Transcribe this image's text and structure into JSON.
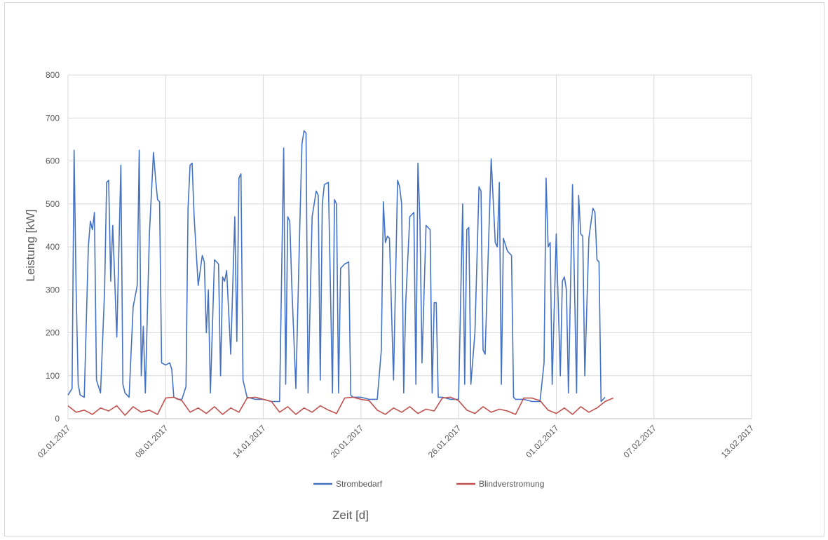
{
  "chart_data": {
    "type": "line",
    "title": "",
    "xlabel": "Zeit [d]",
    "ylabel": "Leistung [kW]",
    "ylim": [
      0,
      800
    ],
    "yticks": [
      0,
      100,
      200,
      300,
      400,
      500,
      600,
      700,
      800
    ],
    "xlim": [
      "02.01.2017",
      "13.02.2017"
    ],
    "xticks": [
      "02.01.2017",
      "08.01.2017",
      "14.01.2017",
      "20.01.2017",
      "26.01.2017",
      "01.02.2017",
      "07.02.2017",
      "13.02.2017"
    ],
    "grid": true,
    "legend": "bottom",
    "series": [
      {
        "name": "Strombedarf",
        "color": "#4472c4",
        "points": [
          [
            "02.01.2017 00:00",
            55
          ],
          [
            "02.01.2017 06:00",
            70
          ],
          [
            "02.01.2017 09:00",
            625
          ],
          [
            "02.01.2017 12:00",
            300
          ],
          [
            "02.01.2017 15:00",
            80
          ],
          [
            "02.01.2017 18:00",
            55
          ],
          [
            "03.01.2017 00:00",
            50
          ],
          [
            "03.01.2017 06:00",
            400
          ],
          [
            "03.01.2017 09:00",
            460
          ],
          [
            "03.01.2017 12:00",
            440
          ],
          [
            "03.01.2017 15:00",
            480
          ],
          [
            "03.01.2017 18:00",
            90
          ],
          [
            "04.01.2017 00:00",
            60
          ],
          [
            "04.01.2017 06:00",
            300
          ],
          [
            "04.01.2017 09:00",
            550
          ],
          [
            "04.01.2017 12:00",
            555
          ],
          [
            "04.01.2017 15:00",
            320
          ],
          [
            "04.01.2017 18:00",
            450
          ],
          [
            "05.01.2017 00:00",
            190
          ],
          [
            "05.01.2017 06:00",
            590
          ],
          [
            "05.01.2017 09:00",
            80
          ],
          [
            "05.01.2017 12:00",
            60
          ],
          [
            "05.01.2017 15:00",
            55
          ],
          [
            "05.01.2017 18:00",
            50
          ],
          [
            "06.01.2017 00:00",
            260
          ],
          [
            "06.01.2017 06:00",
            310
          ],
          [
            "06.01.2017 09:00",
            625
          ],
          [
            "06.01.2017 12:00",
            100
          ],
          [
            "06.01.2017 15:00",
            215
          ],
          [
            "06.01.2017 18:00",
            60
          ],
          [
            "07.01.2017 00:00",
            430
          ],
          [
            "07.01.2017 06:00",
            620
          ],
          [
            "07.01.2017 09:00",
            560
          ],
          [
            "07.01.2017 12:00",
            510
          ],
          [
            "07.01.2017 15:00",
            505
          ],
          [
            "07.01.2017 18:00",
            130
          ],
          [
            "08.01.2017 00:00",
            125
          ],
          [
            "08.01.2017 06:00",
            130
          ],
          [
            "08.01.2017 09:00",
            115
          ],
          [
            "08.01.2017 12:00",
            50
          ],
          [
            "08.01.2017 18:00",
            45
          ],
          [
            "09.01.2017 00:00",
            45
          ],
          [
            "09.01.2017 06:00",
            75
          ],
          [
            "09.01.2017 09:00",
            490
          ],
          [
            "09.01.2017 12:00",
            590
          ],
          [
            "09.01.2017 15:00",
            595
          ],
          [
            "09.01.2017 18:00",
            470
          ],
          [
            "10.01.2017 00:00",
            310
          ],
          [
            "10.01.2017 06:00",
            380
          ],
          [
            "10.01.2017 09:00",
            365
          ],
          [
            "10.01.2017 12:00",
            200
          ],
          [
            "10.01.2017 15:00",
            300
          ],
          [
            "10.01.2017 18:00",
            60
          ],
          [
            "11.01.2017 00:00",
            370
          ],
          [
            "11.01.2017 06:00",
            360
          ],
          [
            "11.01.2017 09:00",
            100
          ],
          [
            "11.01.2017 12:00",
            330
          ],
          [
            "11.01.2017 15:00",
            320
          ],
          [
            "11.01.2017 18:00",
            345
          ],
          [
            "12.01.2017 00:00",
            150
          ],
          [
            "12.01.2017 06:00",
            470
          ],
          [
            "12.01.2017 09:00",
            180
          ],
          [
            "12.01.2017 12:00",
            560
          ],
          [
            "12.01.2017 15:00",
            570
          ],
          [
            "12.01.2017 18:00",
            90
          ],
          [
            "13.01.2017 00:00",
            50
          ],
          [
            "13.01.2017 12:00",
            45
          ],
          [
            "14.01.2017 00:00",
            45
          ],
          [
            "14.01.2017 12:00",
            40
          ],
          [
            "15.01.2017 00:00",
            40
          ],
          [
            "15.01.2017 06:00",
            630
          ],
          [
            "15.01.2017 09:00",
            80
          ],
          [
            "15.01.2017 12:00",
            470
          ],
          [
            "15.01.2017 15:00",
            460
          ],
          [
            "15.01.2017 18:00",
            310
          ],
          [
            "16.01.2017 00:00",
            70
          ],
          [
            "16.01.2017 06:00",
            460
          ],
          [
            "16.01.2017 09:00",
            640
          ],
          [
            "16.01.2017 12:00",
            670
          ],
          [
            "16.01.2017 15:00",
            665
          ],
          [
            "16.01.2017 18:00",
            60
          ],
          [
            "17.01.2017 00:00",
            470
          ],
          [
            "17.01.2017 06:00",
            530
          ],
          [
            "17.01.2017 09:00",
            520
          ],
          [
            "17.01.2017 12:00",
            90
          ],
          [
            "17.01.2017 15:00",
            500
          ],
          [
            "17.01.2017 18:00",
            545
          ],
          [
            "18.01.2017 00:00",
            550
          ],
          [
            "18.01.2017 06:00",
            60
          ],
          [
            "18.01.2017 09:00",
            510
          ],
          [
            "18.01.2017 12:00",
            500
          ],
          [
            "18.01.2017 15:00",
            60
          ],
          [
            "18.01.2017 18:00",
            350
          ],
          [
            "19.01.2017 00:00",
            360
          ],
          [
            "19.01.2017 06:00",
            365
          ],
          [
            "19.01.2017 09:00",
            55
          ],
          [
            "19.01.2017 12:00",
            50
          ],
          [
            "20.01.2017 00:00",
            50
          ],
          [
            "20.01.2017 12:00",
            45
          ],
          [
            "21.01.2017 00:00",
            45
          ],
          [
            "21.01.2017 06:00",
            160
          ],
          [
            "21.01.2017 09:00",
            505
          ],
          [
            "21.01.2017 12:00",
            410
          ],
          [
            "21.01.2017 15:00",
            425
          ],
          [
            "21.01.2017 18:00",
            420
          ],
          [
            "22.01.2017 00:00",
            90
          ],
          [
            "22.01.2017 06:00",
            555
          ],
          [
            "22.01.2017 09:00",
            540
          ],
          [
            "22.01.2017 12:00",
            500
          ],
          [
            "22.01.2017 15:00",
            60
          ],
          [
            "22.01.2017 18:00",
            270
          ],
          [
            "23.01.2017 00:00",
            470
          ],
          [
            "23.01.2017 06:00",
            480
          ],
          [
            "23.01.2017 09:00",
            80
          ],
          [
            "23.01.2017 12:00",
            595
          ],
          [
            "23.01.2017 15:00",
            460
          ],
          [
            "23.01.2017 18:00",
            130
          ],
          [
            "24.01.2017 00:00",
            450
          ],
          [
            "24.01.2017 06:00",
            440
          ],
          [
            "24.01.2017 09:00",
            60
          ],
          [
            "24.01.2017 12:00",
            270
          ],
          [
            "24.01.2017 15:00",
            270
          ],
          [
            "24.01.2017 18:00",
            50
          ],
          [
            "25.01.2017 00:00",
            50
          ],
          [
            "25.01.2017 12:00",
            45
          ],
          [
            "26.01.2017 00:00",
            45
          ],
          [
            "26.01.2017 06:00",
            500
          ],
          [
            "26.01.2017 09:00",
            80
          ],
          [
            "26.01.2017 12:00",
            440
          ],
          [
            "26.01.2017 15:00",
            445
          ],
          [
            "26.01.2017 18:00",
            80
          ],
          [
            "27.01.2017 00:00",
            200
          ],
          [
            "27.01.2017 06:00",
            540
          ],
          [
            "27.01.2017 09:00",
            530
          ],
          [
            "27.01.2017 12:00",
            160
          ],
          [
            "27.01.2017 15:00",
            150
          ],
          [
            "27.01.2017 18:00",
            300
          ],
          [
            "28.01.2017 00:00",
            605
          ],
          [
            "28.01.2017 06:00",
            410
          ],
          [
            "28.01.2017 09:00",
            400
          ],
          [
            "28.01.2017 12:00",
            550
          ],
          [
            "28.01.2017 15:00",
            80
          ],
          [
            "28.01.2017 18:00",
            420
          ],
          [
            "29.01.2017 00:00",
            390
          ],
          [
            "29.01.2017 06:00",
            380
          ],
          [
            "29.01.2017 09:00",
            50
          ],
          [
            "29.01.2017 12:00",
            45
          ],
          [
            "30.01.2017 00:00",
            45
          ],
          [
            "30.01.2017 12:00",
            40
          ],
          [
            "31.01.2017 00:00",
            40
          ],
          [
            "31.01.2017 06:00",
            130
          ],
          [
            "31.01.2017 09:00",
            560
          ],
          [
            "31.01.2017 12:00",
            400
          ],
          [
            "31.01.2017 15:00",
            410
          ],
          [
            "31.01.2017 18:00",
            80
          ],
          [
            "01.02.2017 00:00",
            430
          ],
          [
            "01.02.2017 06:00",
            100
          ],
          [
            "01.02.2017 09:00",
            320
          ],
          [
            "01.02.2017 12:00",
            330
          ],
          [
            "01.02.2017 15:00",
            300
          ],
          [
            "01.02.2017 18:00",
            60
          ],
          [
            "02.02.2017 00:00",
            545
          ],
          [
            "02.02.2017 06:00",
            60
          ],
          [
            "02.02.2017 09:00",
            520
          ],
          [
            "02.02.2017 12:00",
            430
          ],
          [
            "02.02.2017 15:00",
            425
          ],
          [
            "02.02.2017 18:00",
            100
          ],
          [
            "03.02.2017 00:00",
            420
          ],
          [
            "03.02.2017 06:00",
            490
          ],
          [
            "03.02.2017 09:00",
            480
          ],
          [
            "03.02.2017 12:00",
            370
          ],
          [
            "03.02.2017 15:00",
            365
          ],
          [
            "03.02.2017 18:00",
            40
          ],
          [
            "04.02.2017 00:00",
            50
          ]
        ]
      },
      {
        "name": "Blindverstromung",
        "color": "#c0504d",
        "points": [
          [
            "02.01.2017 00:00",
            30
          ],
          [
            "02.01.2017 12:00",
            15
          ],
          [
            "03.01.2017 00:00",
            20
          ],
          [
            "03.01.2017 12:00",
            10
          ],
          [
            "04.01.2017 00:00",
            25
          ],
          [
            "04.01.2017 12:00",
            18
          ],
          [
            "05.01.2017 00:00",
            30
          ],
          [
            "05.01.2017 12:00",
            8
          ],
          [
            "06.01.2017 00:00",
            28
          ],
          [
            "06.01.2017 12:00",
            15
          ],
          [
            "07.01.2017 00:00",
            20
          ],
          [
            "07.01.2017 12:00",
            10
          ],
          [
            "08.01.2017 00:00",
            48
          ],
          [
            "08.01.2017 12:00",
            50
          ],
          [
            "09.01.2017 00:00",
            42
          ],
          [
            "09.01.2017 12:00",
            15
          ],
          [
            "10.01.2017 00:00",
            25
          ],
          [
            "10.01.2017 12:00",
            12
          ],
          [
            "11.01.2017 00:00",
            28
          ],
          [
            "11.01.2017 12:00",
            10
          ],
          [
            "12.01.2017 00:00",
            25
          ],
          [
            "12.01.2017 12:00",
            15
          ],
          [
            "13.01.2017 00:00",
            48
          ],
          [
            "13.01.2017 12:00",
            50
          ],
          [
            "14.01.2017 00:00",
            45
          ],
          [
            "14.01.2017 12:00",
            40
          ],
          [
            "15.01.2017 00:00",
            15
          ],
          [
            "15.01.2017 12:00",
            28
          ],
          [
            "16.01.2017 00:00",
            10
          ],
          [
            "16.01.2017 12:00",
            25
          ],
          [
            "17.01.2017 00:00",
            15
          ],
          [
            "17.01.2017 12:00",
            30
          ],
          [
            "18.01.2017 00:00",
            20
          ],
          [
            "18.01.2017 12:00",
            12
          ],
          [
            "19.01.2017 00:00",
            48
          ],
          [
            "19.01.2017 12:00",
            50
          ],
          [
            "20.01.2017 00:00",
            45
          ],
          [
            "20.01.2017 12:00",
            42
          ],
          [
            "21.01.2017 00:00",
            20
          ],
          [
            "21.01.2017 12:00",
            10
          ],
          [
            "22.01.2017 00:00",
            25
          ],
          [
            "22.01.2017 12:00",
            15
          ],
          [
            "23.01.2017 00:00",
            28
          ],
          [
            "23.01.2017 12:00",
            12
          ],
          [
            "24.01.2017 00:00",
            22
          ],
          [
            "24.01.2017 12:00",
            18
          ],
          [
            "25.01.2017 00:00",
            48
          ],
          [
            "25.01.2017 12:00",
            50
          ],
          [
            "26.01.2017 00:00",
            42
          ],
          [
            "26.01.2017 12:00",
            20
          ],
          [
            "27.01.2017 00:00",
            12
          ],
          [
            "27.01.2017 12:00",
            28
          ],
          [
            "28.01.2017 00:00",
            15
          ],
          [
            "28.01.2017 12:00",
            22
          ],
          [
            "29.01.2017 00:00",
            18
          ],
          [
            "29.01.2017 12:00",
            10
          ],
          [
            "30.01.2017 00:00",
            48
          ],
          [
            "30.01.2017 12:00",
            48
          ],
          [
            "31.01.2017 00:00",
            42
          ],
          [
            "31.01.2017 12:00",
            20
          ],
          [
            "01.02.2017 00:00",
            12
          ],
          [
            "01.02.2017 12:00",
            25
          ],
          [
            "02.02.2017 00:00",
            10
          ],
          [
            "02.02.2017 12:00",
            28
          ],
          [
            "03.02.2017 00:00",
            15
          ],
          [
            "03.02.2017 12:00",
            25
          ],
          [
            "04.02.2017 00:00",
            40
          ],
          [
            "04.02.2017 12:00",
            48
          ]
        ]
      }
    ]
  }
}
